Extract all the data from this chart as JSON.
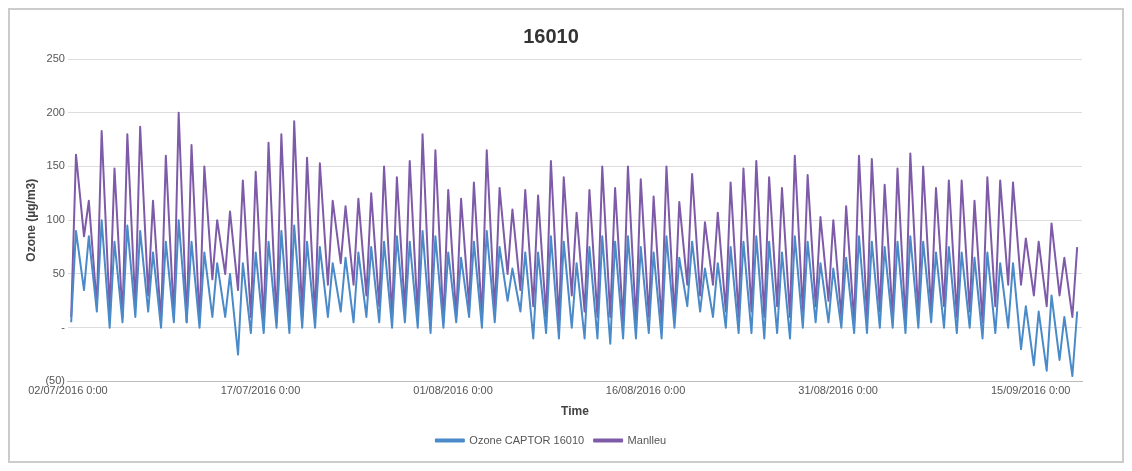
{
  "chart_data": {
    "type": "line",
    "title": "16010",
    "xlabel": "Time",
    "ylabel": "Ozone (µg/m3)",
    "x": [
      "2016-07-02T06:00",
      "2016-07-02T15:00",
      "2016-07-03T06:00",
      "2016-07-03T15:00",
      "2016-07-04T06:00",
      "2016-07-04T15:00",
      "2016-07-05T06:00",
      "2016-07-05T15:00",
      "2016-07-06T06:00",
      "2016-07-06T15:00",
      "2016-07-07T06:00",
      "2016-07-07T15:00",
      "2016-07-08T06:00",
      "2016-07-08T15:00",
      "2016-07-09T06:00",
      "2016-07-09T15:00",
      "2016-07-10T06:00",
      "2016-07-10T15:00",
      "2016-07-11T06:00",
      "2016-07-11T15:00",
      "2016-07-12T06:00",
      "2016-07-12T15:00",
      "2016-07-13T06:00",
      "2016-07-13T15:00",
      "2016-07-14T06:00",
      "2016-07-14T15:00",
      "2016-07-15T06:00",
      "2016-07-15T15:00",
      "2016-07-16T06:00",
      "2016-07-16T15:00",
      "2016-07-17T06:00",
      "2016-07-17T15:00",
      "2016-07-18T06:00",
      "2016-07-18T15:00",
      "2016-07-19T06:00",
      "2016-07-19T15:00",
      "2016-07-20T06:00",
      "2016-07-20T15:00",
      "2016-07-21T06:00",
      "2016-07-21T15:00",
      "2016-07-22T06:00",
      "2016-07-22T15:00",
      "2016-07-23T06:00",
      "2016-07-23T15:00",
      "2016-07-24T06:00",
      "2016-07-24T15:00",
      "2016-07-25T06:00",
      "2016-07-25T15:00",
      "2016-07-26T06:00",
      "2016-07-26T15:00",
      "2016-07-27T06:00",
      "2016-07-27T15:00",
      "2016-07-28T06:00",
      "2016-07-28T15:00",
      "2016-07-29T06:00",
      "2016-07-29T15:00",
      "2016-07-30T06:00",
      "2016-07-30T15:00",
      "2016-07-31T06:00",
      "2016-07-31T15:00",
      "2016-08-01T06:00",
      "2016-08-01T15:00",
      "2016-08-02T06:00",
      "2016-08-02T15:00",
      "2016-08-03T06:00",
      "2016-08-03T15:00",
      "2016-08-04T06:00",
      "2016-08-04T15:00",
      "2016-08-05T06:00",
      "2016-08-05T15:00",
      "2016-08-06T06:00",
      "2016-08-06T15:00",
      "2016-08-07T06:00",
      "2016-08-07T15:00",
      "2016-08-08T06:00",
      "2016-08-08T15:00",
      "2016-08-09T06:00",
      "2016-08-09T15:00",
      "2016-08-10T06:00",
      "2016-08-10T15:00",
      "2016-08-11T06:00",
      "2016-08-11T15:00",
      "2016-08-12T06:00",
      "2016-08-12T15:00",
      "2016-08-13T06:00",
      "2016-08-13T15:00",
      "2016-08-14T06:00",
      "2016-08-14T15:00",
      "2016-08-15T06:00",
      "2016-08-15T15:00",
      "2016-08-16T06:00",
      "2016-08-16T15:00",
      "2016-08-17T06:00",
      "2016-08-17T15:00",
      "2016-08-18T06:00",
      "2016-08-18T15:00",
      "2016-08-19T06:00",
      "2016-08-19T15:00",
      "2016-08-20T06:00",
      "2016-08-20T15:00",
      "2016-08-21T06:00",
      "2016-08-21T15:00",
      "2016-08-22T06:00",
      "2016-08-22T15:00",
      "2016-08-23T06:00",
      "2016-08-23T15:00",
      "2016-08-24T06:00",
      "2016-08-24T15:00",
      "2016-08-25T06:00",
      "2016-08-25T15:00",
      "2016-08-26T06:00",
      "2016-08-26T15:00",
      "2016-08-27T06:00",
      "2016-08-27T15:00",
      "2016-08-28T06:00",
      "2016-08-28T15:00",
      "2016-08-29T06:00",
      "2016-08-29T15:00",
      "2016-08-30T06:00",
      "2016-08-30T15:00",
      "2016-08-31T06:00",
      "2016-08-31T15:00",
      "2016-09-01T06:00",
      "2016-09-01T15:00",
      "2016-09-02T06:00",
      "2016-09-02T15:00",
      "2016-09-03T06:00",
      "2016-09-03T15:00",
      "2016-09-04T06:00",
      "2016-09-04T15:00",
      "2016-09-05T06:00",
      "2016-09-05T15:00",
      "2016-09-06T06:00",
      "2016-09-06T15:00",
      "2016-09-07T06:00",
      "2016-09-07T15:00",
      "2016-09-08T06:00",
      "2016-09-08T15:00",
      "2016-09-09T06:00",
      "2016-09-09T15:00",
      "2016-09-10T06:00",
      "2016-09-10T15:00",
      "2016-09-11T06:00",
      "2016-09-11T15:00",
      "2016-09-12T06:00",
      "2016-09-12T15:00",
      "2016-09-13T06:00",
      "2016-09-13T15:00",
      "2016-09-14T06:00",
      "2016-09-14T15:00",
      "2016-09-15T06:00",
      "2016-09-15T15:00",
      "2016-09-16T06:00",
      "2016-09-16T15:00",
      "2016-09-17T06:00",
      "2016-09-17T15:00",
      "2016-09-18T06:00",
      "2016-09-18T15:00"
    ],
    "series": [
      {
        "name": "Ozone CAPTOR 16010",
        "color": "#4a8ac8",
        "values": [
          5,
          90,
          35,
          85,
          15,
          100,
          0,
          80,
          5,
          95,
          10,
          90,
          15,
          70,
          0,
          80,
          5,
          100,
          5,
          80,
          0,
          70,
          10,
          60,
          10,
          50,
          -25,
          60,
          -5,
          70,
          -5,
          80,
          0,
          90,
          -5,
          95,
          0,
          80,
          0,
          75,
          10,
          60,
          15,
          65,
          5,
          70,
          10,
          75,
          5,
          80,
          0,
          85,
          5,
          80,
          0,
          90,
          -5,
          85,
          0,
          70,
          5,
          65,
          10,
          80,
          0,
          90,
          5,
          75,
          25,
          55,
          15,
          70,
          -10,
          70,
          -5,
          85,
          -10,
          80,
          0,
          60,
          -10,
          75,
          -10,
          85,
          -15,
          80,
          -10,
          85,
          -10,
          75,
          -5,
          70,
          -10,
          85,
          0,
          65,
          20,
          80,
          15,
          55,
          10,
          60,
          0,
          75,
          -5,
          80,
          -5,
          85,
          -10,
          80,
          -5,
          70,
          -10,
          85,
          0,
          80,
          5,
          60,
          5,
          55,
          0,
          65,
          -5,
          85,
          -5,
          80,
          0,
          75,
          0,
          80,
          -5,
          85,
          0,
          80,
          5,
          70,
          0,
          75,
          -5,
          70,
          0,
          65,
          -10,
          70,
          -5,
          60,
          0,
          60,
          -20,
          20,
          -35,
          15,
          -40,
          30,
          -30,
          10,
          -45,
          15
        ]
      },
      {
        "name": "Manlleu",
        "color": "#7e5ba8",
        "values": [
          10,
          161,
          85,
          118,
          20,
          183,
          15,
          148,
          10,
          180,
          20,
          187,
          30,
          118,
          5,
          160,
          10,
          200,
          5,
          170,
          5,
          150,
          45,
          100,
          50,
          108,
          35,
          137,
          10,
          145,
          5,
          172,
          5,
          180,
          5,
          192,
          10,
          158,
          10,
          153,
          40,
          118,
          60,
          113,
          40,
          120,
          30,
          125,
          20,
          150,
          10,
          140,
          15,
          155,
          10,
          180,
          5,
          165,
          5,
          128,
          10,
          120,
          20,
          135,
          10,
          165,
          15,
          130,
          50,
          110,
          35,
          128,
          20,
          123,
          10,
          155,
          5,
          140,
          30,
          107,
          15,
          128,
          10,
          150,
          10,
          130,
          5,
          150,
          5,
          138,
          10,
          122,
          5,
          150,
          10,
          117,
          40,
          143,
          30,
          98,
          40,
          107,
          15,
          135,
          10,
          148,
          15,
          155,
          10,
          140,
          20,
          130,
          10,
          160,
          15,
          142,
          20,
          103,
          25,
          100,
          10,
          113,
          5,
          160,
          10,
          157,
          15,
          133,
          10,
          148,
          5,
          162,
          10,
          150,
          15,
          130,
          20,
          137,
          10,
          137,
          15,
          118,
          5,
          140,
          20,
          137,
          40,
          135,
          40,
          83,
          30,
          80,
          20,
          97,
          30,
          65,
          10,
          75
        ]
      }
    ],
    "xlim": [
      "2016-07-02T00:00",
      "2016-09-19T00:00"
    ],
    "xticks": [
      {
        "value": "2016-07-02T00:00",
        "label": "02/07/2016 0:00"
      },
      {
        "value": "2016-07-17T00:00",
        "label": "17/07/2016 0:00"
      },
      {
        "value": "2016-08-01T00:00",
        "label": "01/08/2016 0:00"
      },
      {
        "value": "2016-08-16T00:00",
        "label": "16/08/2016 0:00"
      },
      {
        "value": "2016-08-31T00:00",
        "label": "31/08/2016 0:00"
      },
      {
        "value": "2016-09-15T00:00",
        "label": "15/09/2016 0:00"
      }
    ],
    "ylim": [
      -50,
      250
    ],
    "yticks": [
      {
        "value": -50,
        "label": "(50)"
      },
      {
        "value": 0,
        "label": "-"
      },
      50,
      100,
      150,
      200,
      250
    ],
    "grid": "y",
    "legend": "bottom",
    "marker": "none",
    "line_style": "solid"
  }
}
